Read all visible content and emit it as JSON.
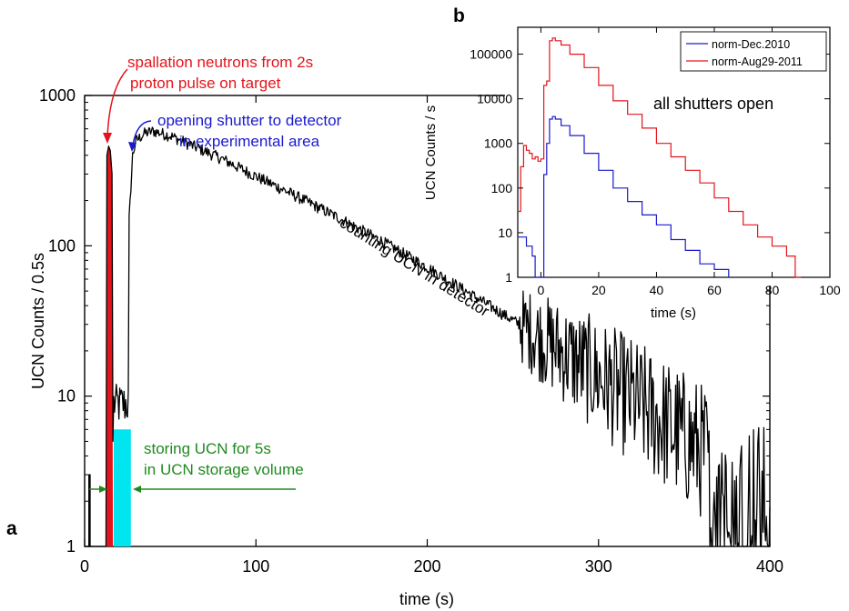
{
  "chart_data": [
    {
      "panel": "a",
      "type": "line",
      "xlabel": "time (s)",
      "ylabel": "UCN Counts / 0.5s",
      "xlim": [
        0,
        400
      ],
      "ylim": [
        1,
        1000
      ],
      "yscale": "log",
      "grid": false,
      "xticks": [
        0,
        100,
        200,
        300,
        400
      ],
      "yticks": [
        1,
        10,
        100,
        1000
      ],
      "xtick_labels": [
        "0",
        "100",
        "200",
        "300",
        "400"
      ],
      "ytick_labels": [
        "1",
        "10",
        "100",
        "1000"
      ],
      "colors": {
        "trace": "#000000",
        "spallation_fill": "#e3141b",
        "storage_fill": "#00e5f0",
        "red_ann": "#e3141b",
        "blue_ann": "#1a1acd",
        "green_ann": "#1e8a1e"
      },
      "annotations": {
        "spallation": [
          "spallation neutrons from 2s",
          "proton pulse on target"
        ],
        "shutter": [
          "opening shutter to detector",
          "in experimental area"
        ],
        "counting": "counting UCN in detector",
        "storing": [
          "storing UCN for 5s",
          "in UCN storage volume"
        ]
      },
      "series": [
        {
          "decay_envelope": {
            "x": [
              26,
              28,
              30,
              35,
              40,
              50,
              60,
              80,
              100,
              125,
              150,
              175,
              200,
              225,
              250,
              275,
              300,
              325,
              350,
              375,
              400
            ],
            "y": [
              150,
              400,
              500,
              560,
              580,
              540,
              480,
              380,
              290,
              210,
              150,
              105,
              72,
              48,
              32,
              21,
              13.5,
              8.5,
              5.3,
              3.2,
              2
            ]
          },
          "spallation_peak": {
            "x": [
              13,
              14,
              15,
              16
            ],
            "y": [
              400,
              460,
              430,
              300
            ]
          },
          "storage_level": {
            "x": [
              17,
              27
            ],
            "y": [
              6,
              10
            ]
          },
          "prompt_counts": {
            "x": [
              3,
              3.5
            ],
            "y": [
              3,
              3
            ]
          }
        }
      ]
    },
    {
      "panel": "b",
      "type": "line",
      "xlabel": "time (s)",
      "ylabel": "UCN Counts / s",
      "xlim": [
        -8,
        100
      ],
      "ylim": [
        1,
        400000
      ],
      "yscale": "log",
      "grid": false,
      "xticks": [
        0,
        20,
        40,
        60,
        80,
        100
      ],
      "yticks": [
        1,
        10,
        100,
        1000,
        10000,
        100000
      ],
      "xtick_labels": [
        "0",
        "20",
        "40",
        "60",
        "80",
        "100"
      ],
      "ytick_labels": [
        "1",
        "10",
        "100",
        "1000",
        "10000",
        "100000"
      ],
      "annotation": "all shutters open",
      "legend_position": "top-right",
      "series": [
        {
          "name": "norm-Aug29-2011",
          "color": "#e3141b",
          "x": [
            -8,
            -7,
            -6,
            -5,
            -4,
            -3,
            -2,
            -1,
            0,
            1,
            2,
            3,
            4,
            5,
            7,
            10,
            15,
            20,
            25,
            30,
            35,
            40,
            45,
            50,
            55,
            60,
            65,
            70,
            75,
            80,
            85,
            88,
            90
          ],
          "y": [
            30,
            300,
            900,
            700,
            600,
            450,
            500,
            400,
            450,
            20000,
            25000,
            200000,
            230000,
            200000,
            160000,
            100000,
            50000,
            20000,
            9000,
            4500,
            2200,
            1000,
            500,
            250,
            130,
            60,
            30,
            15,
            8,
            5,
            3,
            1,
            1
          ]
        },
        {
          "name": "norm-Dec.2010",
          "color": "#1a1acd",
          "x": [
            -8,
            -6,
            -5,
            -4,
            -3,
            -2,
            0,
            1,
            2,
            3,
            4,
            5,
            7,
            10,
            15,
            20,
            25,
            30,
            35,
            40,
            45,
            50,
            55,
            60,
            65
          ],
          "y": [
            8,
            8,
            5,
            5,
            3,
            1,
            1,
            200,
            1000,
            3500,
            4000,
            3500,
            2500,
            1500,
            600,
            250,
            100,
            50,
            25,
            15,
            7,
            4,
            2,
            1.5,
            1
          ]
        }
      ]
    }
  ]
}
